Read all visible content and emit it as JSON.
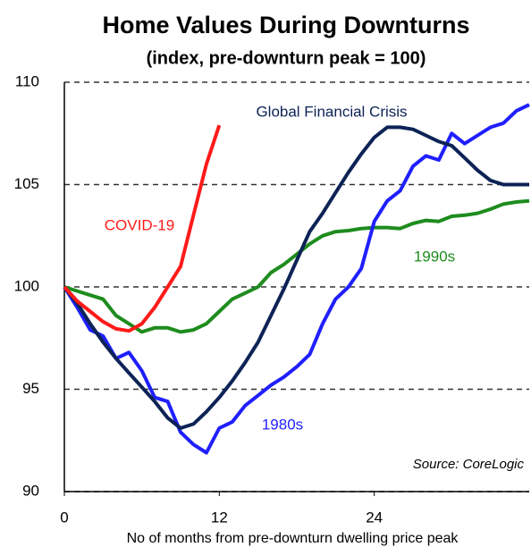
{
  "chart_data": {
    "type": "line",
    "title": "Home Values During Downturns",
    "subtitle": "(index, pre-downturn peak = 100)",
    "x_label": "No of months from pre-downturn dwelling price peak",
    "annotation": "Source: CoreLogic",
    "x": [
      0,
      1,
      2,
      3,
      4,
      5,
      6,
      7,
      8,
      9,
      10,
      11,
      12,
      13,
      14,
      15,
      16,
      17,
      18,
      19,
      20,
      21,
      22,
      23,
      24,
      25,
      26,
      27,
      28,
      29,
      30,
      31,
      32,
      33,
      34,
      35,
      36
    ],
    "xlim": [
      0,
      36
    ],
    "xticks": [
      0,
      12,
      24
    ],
    "ylim": [
      90,
      110
    ],
    "yticks": [
      90,
      95,
      100,
      105,
      110
    ],
    "grid": true,
    "series": [
      {
        "name": "1990s",
        "color": "#1e8c1e",
        "values": [
          100,
          99.8,
          99.6,
          99.4,
          98.6,
          98.2,
          97.8,
          98.0,
          98.0,
          97.8,
          97.9,
          98.2,
          98.8,
          99.4,
          99.7,
          100.0,
          100.7,
          101.1,
          101.6,
          102.1,
          102.5,
          102.7,
          102.75,
          102.85,
          102.9,
          102.9,
          102.85,
          103.1,
          103.25,
          103.2,
          103.45,
          103.5,
          103.6,
          103.8,
          104.05,
          104.15,
          104.2
        ]
      },
      {
        "name": "1980s",
        "color": "#1f1fff",
        "values": [
          100,
          99.0,
          97.9,
          97.6,
          96.5,
          96.8,
          95.9,
          94.6,
          94.4,
          92.9,
          92.3,
          91.9,
          93.1,
          93.4,
          94.2,
          94.7,
          95.2,
          95.6,
          96.1,
          96.7,
          98.2,
          99.4,
          100.0,
          100.9,
          103.2,
          104.2,
          104.7,
          105.9,
          106.4,
          106.2,
          107.5,
          107.0,
          107.4,
          107.8,
          108.0,
          108.6,
          108.9
        ]
      },
      {
        "name": "Global Financial Crisis",
        "color": "#0d2356",
        "values": [
          100,
          99.2,
          98.2,
          97.3,
          96.5,
          95.8,
          95.1,
          94.4,
          93.6,
          93.1,
          93.3,
          93.9,
          94.6,
          95.4,
          96.3,
          97.3,
          98.6,
          99.9,
          101.3,
          102.7,
          103.6,
          104.6,
          105.6,
          106.5,
          107.3,
          107.8,
          107.8,
          107.7,
          107.4,
          107.1,
          106.9,
          106.3,
          105.7,
          105.2,
          105.0,
          105.0,
          105.0
        ]
      },
      {
        "name": "COVID-19",
        "color": "#ff1a1a",
        "values": [
          100,
          99.3,
          98.8,
          98.3,
          97.95,
          97.85,
          98.2,
          99.0,
          100.0,
          101.0,
          103.5,
          106.0,
          107.9,
          null,
          null,
          null,
          null,
          null,
          null,
          null,
          null,
          null,
          null,
          null,
          null,
          null,
          null,
          null,
          null,
          null,
          null,
          null,
          null,
          null,
          null,
          null,
          null
        ]
      }
    ]
  }
}
